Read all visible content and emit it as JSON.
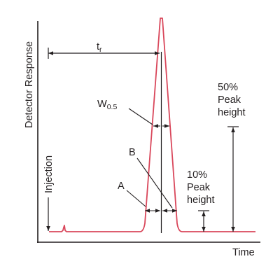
{
  "diagram": {
    "axis_x_label": "Time",
    "axis_y_label": "Detector Response",
    "injection_label": "Injection",
    "retention_time": {
      "main": "t",
      "subscript": "r"
    },
    "width_half": {
      "main": "W",
      "subscript": "0.5"
    },
    "label_a": "A",
    "label_b": "B",
    "fifty_percent": {
      "line1": "50%",
      "line2": "Peak",
      "line3": "height"
    },
    "ten_percent": {
      "line1": "10%",
      "line2": "Peak",
      "line3": "height"
    },
    "colors": {
      "peak": "#d9475b",
      "ink": "#231f20"
    }
  }
}
